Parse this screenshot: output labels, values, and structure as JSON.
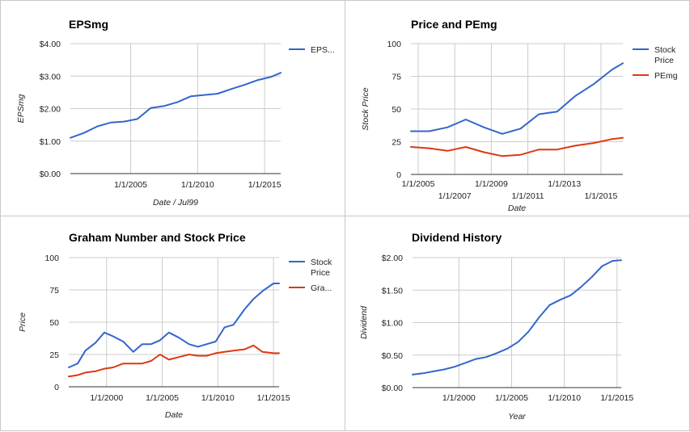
{
  "colors": {
    "blue": "#3366cc",
    "red": "#dc3912",
    "grid": "#cccccc",
    "axis": "#333333"
  },
  "chart_data": [
    {
      "type": "line",
      "title": "EPSmg",
      "xlabel": "Date / Jul99",
      "ylabel": "EPSmg",
      "xlim": [
        2000.5,
        2016.2
      ],
      "ylim": [
        0,
        4
      ],
      "y_ticks": [
        0,
        1,
        2,
        3,
        4
      ],
      "y_tick_labels": [
        "$0.00",
        "$1.00",
        "$2.00",
        "$3.00",
        "$4.00"
      ],
      "x_ticks": [
        2005,
        2010,
        2015
      ],
      "x_tick_labels": [
        "1/1/2005",
        "1/1/2010",
        "1/1/2015"
      ],
      "legend_position": "right",
      "series": [
        {
          "name": "EPS...",
          "color": "#3366cc",
          "x": [
            2000.5,
            2001.5,
            2002.5,
            2003.5,
            2004.5,
            2005.5,
            2006.5,
            2007.5,
            2008.5,
            2009.5,
            2010.5,
            2011.5,
            2012.5,
            2013.5,
            2014.5,
            2015.5,
            2016.2
          ],
          "y": [
            1.1,
            1.25,
            1.45,
            1.57,
            1.6,
            1.68,
            2.02,
            2.08,
            2.2,
            2.38,
            2.42,
            2.46,
            2.6,
            2.73,
            2.88,
            2.98,
            3.1
          ]
        }
      ]
    },
    {
      "type": "line",
      "title": "Price and PEmg",
      "xlabel": "Date",
      "ylabel": "Stock Price",
      "xlim": [
        2004.6,
        2016.2
      ],
      "ylim": [
        0,
        100
      ],
      "y_ticks": [
        0,
        25,
        50,
        75,
        100
      ],
      "y_tick_labels": [
        "0",
        "25",
        "50",
        "75",
        "100"
      ],
      "x_ticks": [
        2005,
        2007,
        2009,
        2011,
        2013,
        2015
      ],
      "x_tick_labels": [
        "1/1/2005",
        "1/1/2007",
        "1/1/2009",
        "1/1/2011",
        "1/1/2013",
        "1/1/2015"
      ],
      "legend_position": "right",
      "series": [
        {
          "name": "Stock Price",
          "color": "#3366cc",
          "x": [
            2004.6,
            2005.6,
            2006.6,
            2007.6,
            2008.6,
            2009.6,
            2010.6,
            2011.6,
            2012.6,
            2013.6,
            2014.6,
            2015.6,
            2016.2
          ],
          "y": [
            33,
            33,
            36,
            42,
            36,
            31,
            35,
            46,
            48,
            60,
            69,
            80,
            85
          ]
        },
        {
          "name": "PEmg",
          "color": "#dc3912",
          "x": [
            2004.6,
            2005.6,
            2006.6,
            2007.6,
            2008.6,
            2009.6,
            2010.6,
            2011.6,
            2012.6,
            2013.6,
            2014.6,
            2015.6,
            2016.2
          ],
          "y": [
            21,
            20,
            18,
            21,
            17,
            14,
            15,
            19,
            19,
            22,
            24,
            27,
            28
          ]
        }
      ]
    },
    {
      "type": "line",
      "title": "Graham Number and Stock Price",
      "xlabel": "Date",
      "ylabel": "Price",
      "xlim": [
        1996.6,
        2015.5
      ],
      "ylim": [
        0,
        100
      ],
      "y_ticks": [
        0,
        25,
        50,
        75,
        100
      ],
      "y_tick_labels": [
        "0",
        "25",
        "50",
        "75",
        "100"
      ],
      "x_ticks": [
        2000,
        2005,
        2010,
        2015
      ],
      "x_tick_labels": [
        "1/1/2000",
        "1/1/2005",
        "1/1/2010",
        "1/1/2015"
      ],
      "legend_position": "right",
      "series": [
        {
          "name": "Stock Price",
          "color": "#3366cc",
          "x": [
            1996.6,
            1997.4,
            1998.1,
            1999.0,
            1999.8,
            2000.6,
            2001.5,
            2002.4,
            2003.2,
            2004.0,
            2004.8,
            2005.6,
            2006.5,
            2007.4,
            2008.2,
            2009.0,
            2009.8,
            2010.6,
            2011.4,
            2012.4,
            2013.2,
            2014.0,
            2015.0,
            2015.5
          ],
          "y": [
            15,
            18,
            28,
            34,
            42,
            39,
            35,
            27,
            33,
            33,
            36,
            42,
            38,
            33,
            31,
            33,
            35,
            46,
            48,
            60,
            68,
            74,
            80,
            80
          ]
        },
        {
          "name": "Gra...",
          "color": "#dc3912",
          "x": [
            1996.6,
            1997.4,
            1998.1,
            1999.0,
            1999.8,
            2000.6,
            2001.5,
            2002.4,
            2003.2,
            2004.0,
            2004.8,
            2005.6,
            2006.5,
            2007.4,
            2008.2,
            2009.0,
            2009.8,
            2010.6,
            2011.4,
            2012.4,
            2013.2,
            2014.0,
            2015.0,
            2015.5
          ],
          "y": [
            8,
            9,
            11,
            12,
            14,
            15,
            18,
            18,
            18,
            20,
            25,
            21,
            23,
            25,
            24,
            24,
            26,
            27,
            28,
            29,
            32,
            27,
            26,
            26
          ]
        }
      ]
    },
    {
      "type": "line",
      "title": "Dividend History",
      "xlabel": "Year",
      "ylabel": "Dividend",
      "xlim": [
        1995.6,
        2015.4
      ],
      "ylim": [
        0,
        2
      ],
      "y_ticks": [
        0,
        0.5,
        1,
        1.5,
        2
      ],
      "y_tick_labels": [
        "$0.00",
        "$0.50",
        "$1.00",
        "$1.50",
        "$2.00"
      ],
      "x_ticks": [
        2000,
        2005,
        2010,
        2015
      ],
      "x_tick_labels": [
        "1/1/2000",
        "1/1/2005",
        "1/1/2010",
        "1/1/2015"
      ],
      "legend_position": "none",
      "series": [
        {
          "name": "",
          "color": "#3366cc",
          "x": [
            1995.6,
            1996.6,
            1997.6,
            1998.6,
            1999.6,
            2000.6,
            2001.6,
            2002.6,
            2003.6,
            2004.6,
            2005.6,
            2006.6,
            2007.6,
            2008.6,
            2009.6,
            2010.6,
            2011.6,
            2012.6,
            2013.6,
            2014.6,
            2015.4
          ],
          "y": [
            0.2,
            0.22,
            0.25,
            0.28,
            0.32,
            0.38,
            0.44,
            0.47,
            0.53,
            0.6,
            0.7,
            0.86,
            1.08,
            1.27,
            1.35,
            1.42,
            1.55,
            1.7,
            1.87,
            1.95,
            1.96
          ]
        }
      ]
    }
  ]
}
